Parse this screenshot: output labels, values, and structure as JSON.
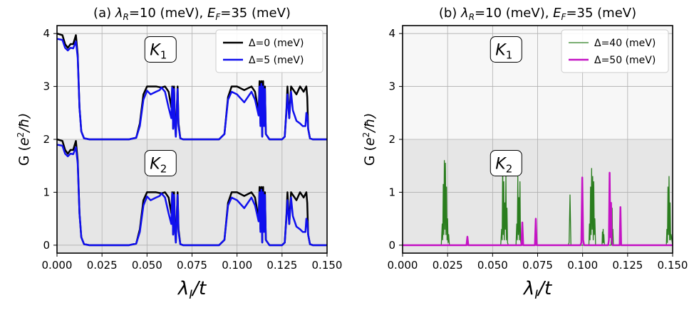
{
  "chart_data": [
    {
      "type": "line",
      "title": "(a) λR=10 (meV), EF=35 (meV)",
      "title_parts": {
        "prefix": "(a) ",
        "lam": "λ",
        "lam_sub": "R",
        "mid": "=10 (meV), ",
        "e": "E",
        "e_sub": "F",
        "end": "=35 (meV)"
      },
      "xlabel": {
        "main": "λ",
        "sub": "I",
        "rest": "/t"
      },
      "ylabel": {
        "pre": "G (",
        "e": "e",
        "sup": "2",
        "rest": "/ħ)"
      },
      "xlim": [
        0.0,
        0.15
      ],
      "ylim": [
        -0.15,
        4.15
      ],
      "xticks": [
        "0.000",
        "0.025",
        "0.050",
        "0.075",
        "0.100",
        "0.125",
        "0.150"
      ],
      "yticks": [
        "0",
        "1",
        "2",
        "3",
        "4"
      ],
      "grid": true,
      "legend_position": "top-right",
      "bands": [
        {
          "y0": 2,
          "y1": 4.15,
          "color": "#f7f7f7"
        },
        {
          "y0": -0.15,
          "y1": 2,
          "color": "#e6e6e6"
        }
      ],
      "valley_labels": [
        {
          "text": "K",
          "sub": "1",
          "x": 0.0575,
          "y": 3.7
        },
        {
          "text": "K",
          "sub": "2",
          "x": 0.0575,
          "y": 1.55
        }
      ],
      "series": [
        {
          "name": "Δ=0 (meV)",
          "color": "#000000",
          "width": 2.5,
          "x": [
            0,
            0.003,
            0.0045,
            0.006,
            0.0075,
            0.009,
            0.0105,
            0.0115,
            0.0125,
            0.0135,
            0.015,
            0.018,
            0.022,
            0.03,
            0.04,
            0.044,
            0.046,
            0.048,
            0.05,
            0.055,
            0.058,
            0.06,
            0.062,
            0.0635,
            0.064,
            0.0645,
            0.065,
            0.0655,
            0.066,
            0.067,
            0.0675,
            0.0685,
            0.07,
            0.08,
            0.09,
            0.093,
            0.095,
            0.097,
            0.1,
            0.104,
            0.108,
            0.11,
            0.112,
            0.1125,
            0.113,
            0.1135,
            0.114,
            0.1145,
            0.115,
            0.1155,
            0.116,
            0.118,
            0.12,
            0.125,
            0.1265,
            0.1275,
            0.128,
            0.129,
            0.13,
            0.131,
            0.133,
            0.135,
            0.137,
            0.1385,
            0.139,
            0.1395,
            0.1405,
            0.142,
            0.15
          ],
          "y": [
            4.0,
            3.97,
            3.8,
            3.73,
            3.8,
            3.8,
            3.97,
            3.6,
            2.6,
            2.15,
            2.02,
            2.0,
            2.0,
            2.0,
            2.0,
            2.03,
            2.3,
            2.85,
            3.0,
            3.0,
            2.98,
            3.0,
            2.9,
            2.6,
            3.0,
            2.2,
            3.0,
            2.4,
            2.05,
            3.0,
            2.3,
            2.02,
            2.0,
            2.0,
            2.0,
            2.1,
            2.8,
            3.0,
            3.0,
            2.93,
            3.0,
            2.9,
            2.5,
            3.1,
            2.3,
            3.1,
            2.05,
            3.1,
            2.3,
            3.0,
            2.1,
            2.0,
            2.0,
            2.0,
            2.05,
            2.6,
            3.0,
            2.4,
            3.0,
            2.95,
            2.85,
            3.0,
            2.9,
            3.0,
            2.8,
            2.2,
            2.02,
            2.0,
            2.0
          ]
        },
        {
          "name": "Δ=5 (meV)",
          "color": "#1010ee",
          "width": 2.5,
          "x": [
            0,
            0.003,
            0.0045,
            0.006,
            0.0075,
            0.009,
            0.0105,
            0.0115,
            0.0125,
            0.0135,
            0.015,
            0.018,
            0.022,
            0.03,
            0.04,
            0.044,
            0.046,
            0.048,
            0.05,
            0.052,
            0.055,
            0.057,
            0.058,
            0.06,
            0.062,
            0.0635,
            0.064,
            0.0645,
            0.065,
            0.0655,
            0.066,
            0.067,
            0.0675,
            0.0685,
            0.07,
            0.08,
            0.09,
            0.093,
            0.095,
            0.097,
            0.1,
            0.104,
            0.108,
            0.11,
            0.112,
            0.1125,
            0.113,
            0.1135,
            0.114,
            0.1145,
            0.115,
            0.1155,
            0.116,
            0.118,
            0.12,
            0.125,
            0.1265,
            0.1275,
            0.128,
            0.129,
            0.13,
            0.131,
            0.133,
            0.135,
            0.1365,
            0.138,
            0.1385,
            0.139,
            0.1395,
            0.1405,
            0.142,
            0.15
          ],
          "y": [
            3.9,
            3.88,
            3.73,
            3.68,
            3.73,
            3.72,
            3.85,
            3.55,
            2.6,
            2.15,
            2.02,
            2.0,
            2.0,
            2.0,
            2.0,
            2.03,
            2.25,
            2.75,
            2.92,
            2.85,
            2.9,
            2.93,
            2.98,
            2.9,
            2.6,
            2.4,
            2.98,
            2.2,
            2.95,
            2.3,
            2.05,
            2.95,
            2.25,
            2.02,
            2.0,
            2.0,
            2.0,
            2.1,
            2.75,
            2.9,
            2.85,
            2.7,
            2.9,
            2.75,
            2.45,
            3.0,
            2.25,
            3.05,
            2.05,
            3.0,
            2.25,
            2.95,
            2.1,
            2.0,
            2.0,
            2.0,
            2.05,
            2.55,
            2.85,
            2.4,
            2.9,
            2.55,
            2.35,
            2.3,
            2.25,
            2.25,
            2.5,
            2.45,
            2.2,
            2.02,
            2.0,
            2.0
          ]
        },
        {
          "name": "Δ=0 (meV)",
          "color": "#000000",
          "width": 2.5,
          "in_legend": false,
          "x": [
            0,
            0.003,
            0.0045,
            0.006,
            0.0075,
            0.009,
            0.0105,
            0.0115,
            0.0125,
            0.0135,
            0.015,
            0.018,
            0.022,
            0.03,
            0.04,
            0.044,
            0.046,
            0.048,
            0.05,
            0.055,
            0.058,
            0.06,
            0.062,
            0.0635,
            0.064,
            0.0645,
            0.065,
            0.0655,
            0.066,
            0.067,
            0.0675,
            0.0685,
            0.07,
            0.08,
            0.09,
            0.093,
            0.095,
            0.097,
            0.1,
            0.104,
            0.108,
            0.11,
            0.112,
            0.1125,
            0.113,
            0.1135,
            0.114,
            0.1145,
            0.115,
            0.1155,
            0.116,
            0.118,
            0.12,
            0.125,
            0.1265,
            0.1275,
            0.128,
            0.129,
            0.13,
            0.131,
            0.133,
            0.135,
            0.137,
            0.1385,
            0.139,
            0.1395,
            0.1405,
            0.142,
            0.15
          ],
          "y": [
            2.0,
            1.97,
            1.8,
            1.73,
            1.8,
            1.8,
            1.97,
            1.6,
            0.6,
            0.15,
            0.02,
            0.0,
            0.0,
            0.0,
            0.0,
            0.03,
            0.3,
            0.85,
            1.0,
            1.0,
            0.98,
            1.0,
            0.9,
            0.6,
            1.0,
            0.2,
            1.0,
            0.4,
            0.05,
            1.0,
            0.3,
            0.02,
            0.0,
            0.0,
            0.0,
            0.1,
            0.8,
            1.0,
            1.0,
            0.93,
            1.0,
            0.9,
            0.5,
            1.1,
            0.3,
            1.1,
            0.05,
            1.1,
            0.3,
            1.0,
            0.1,
            0.0,
            0.0,
            0.0,
            0.05,
            0.6,
            1.0,
            0.4,
            1.0,
            0.95,
            0.85,
            1.0,
            0.9,
            1.0,
            0.8,
            0.2,
            0.02,
            0.0,
            0.0
          ]
        },
        {
          "name": "Δ=5 (meV)",
          "color": "#1010ee",
          "width": 2.5,
          "in_legend": false,
          "x": [
            0,
            0.003,
            0.0045,
            0.006,
            0.0075,
            0.009,
            0.0105,
            0.0115,
            0.0125,
            0.0135,
            0.015,
            0.018,
            0.022,
            0.03,
            0.04,
            0.044,
            0.046,
            0.048,
            0.05,
            0.052,
            0.055,
            0.057,
            0.058,
            0.06,
            0.062,
            0.0635,
            0.064,
            0.0645,
            0.065,
            0.0655,
            0.066,
            0.067,
            0.0675,
            0.0685,
            0.07,
            0.08,
            0.09,
            0.093,
            0.095,
            0.097,
            0.1,
            0.104,
            0.108,
            0.11,
            0.112,
            0.1125,
            0.113,
            0.1135,
            0.114,
            0.1145,
            0.115,
            0.1155,
            0.116,
            0.118,
            0.12,
            0.125,
            0.1265,
            0.1275,
            0.128,
            0.129,
            0.13,
            0.131,
            0.133,
            0.135,
            0.1365,
            0.138,
            0.1385,
            0.139,
            0.1395,
            0.1405,
            0.142,
            0.15
          ],
          "y": [
            1.9,
            1.88,
            1.73,
            1.68,
            1.73,
            1.72,
            1.85,
            1.55,
            0.6,
            0.15,
            0.02,
            0.0,
            0.0,
            0.0,
            0.0,
            0.03,
            0.25,
            0.75,
            0.92,
            0.85,
            0.9,
            0.93,
            0.98,
            0.9,
            0.6,
            0.4,
            0.98,
            0.2,
            0.95,
            0.3,
            0.05,
            0.95,
            0.25,
            0.02,
            0.0,
            0.0,
            0.0,
            0.1,
            0.75,
            0.9,
            0.85,
            0.7,
            0.9,
            0.75,
            0.45,
            1.0,
            0.25,
            1.05,
            0.05,
            1.0,
            0.25,
            0.95,
            0.1,
            0.0,
            0.0,
            0.0,
            0.05,
            0.55,
            0.85,
            0.4,
            0.9,
            0.55,
            0.35,
            0.3,
            0.25,
            0.25,
            0.5,
            0.45,
            0.2,
            0.02,
            0.0,
            0.0
          ]
        }
      ]
    },
    {
      "type": "line",
      "title": "(b) λR=10 (meV), EF=35 (meV)",
      "title_parts": {
        "prefix": "(b) ",
        "lam": "λ",
        "lam_sub": "R",
        "mid": "=10 (meV), ",
        "e": "E",
        "e_sub": "F",
        "end": "=35 (meV)"
      },
      "xlabel": {
        "main": "λ",
        "sub": "I",
        "rest": "/t"
      },
      "ylabel": {
        "pre": "G (",
        "e": "e",
        "sup": "2",
        "rest": "/ħ)"
      },
      "xlim": [
        0.0,
        0.15
      ],
      "ylim": [
        -0.15,
        4.15
      ],
      "xticks": [
        "0.000",
        "0.025",
        "0.050",
        "0.075",
        "0.100",
        "0.125",
        "0.150"
      ],
      "yticks": [
        "0",
        "1",
        "2",
        "3",
        "4"
      ],
      "grid": true,
      "legend_position": "top-right",
      "bands": [
        {
          "y0": 2,
          "y1": 4.15,
          "color": "#f7f7f7"
        },
        {
          "y0": -0.15,
          "y1": 2,
          "color": "#e6e6e6"
        }
      ],
      "valley_labels": [
        {
          "text": "K",
          "sub": "1",
          "x": 0.0575,
          "y": 3.7
        },
        {
          "text": "K",
          "sub": "2",
          "x": 0.0575,
          "y": 1.55
        }
      ],
      "series": [
        {
          "name": "Δ=40 (meV)",
          "color": "#2a7d1e",
          "width": 1.3,
          "x": [
            0,
            0.0215,
            0.022,
            0.0223,
            0.0226,
            0.0229,
            0.0232,
            0.0235,
            0.0238,
            0.0241,
            0.0244,
            0.0247,
            0.025,
            0.0253,
            0.0256,
            0.026,
            0.0545,
            0.055,
            0.0553,
            0.0556,
            0.0559,
            0.0562,
            0.0565,
            0.0568,
            0.0571,
            0.0574,
            0.0577,
            0.058,
            0.0583,
            0.0587,
            0.063,
            0.0634,
            0.0637,
            0.064,
            0.0643,
            0.0646,
            0.0649,
            0.0652,
            0.0655,
            0.0659,
            0.092,
            0.0925,
            0.093,
            0.0935,
            0.1035,
            0.1038,
            0.1041,
            0.1044,
            0.1047,
            0.105,
            0.1053,
            0.1056,
            0.1059,
            0.1062,
            0.1065,
            0.1068,
            0.1072,
            0.1108,
            0.111,
            0.1112,
            0.1114,
            0.1116,
            0.1118,
            0.1121,
            0.1158,
            0.116,
            0.1162,
            0.1164,
            0.1166,
            0.1168,
            0.1171,
            0.1465,
            0.1468,
            0.1471,
            0.1474,
            0.1477,
            0.148,
            0.1483,
            0.1486,
            0.1489,
            0.1492,
            0.15
          ],
          "y": [
            0,
            0,
            0.4,
            0.1,
            1.15,
            0.2,
            1.6,
            0.3,
            1.55,
            0.2,
            1.1,
            0.1,
            0.5,
            0.05,
            0.2,
            0,
            0,
            0.3,
            0.1,
            1.55,
            0.2,
            1.2,
            0.1,
            0.8,
            0.3,
            1.3,
            0.1,
            0.7,
            0.05,
            0,
            0,
            0.4,
            0.1,
            1.3,
            0.2,
            0.9,
            0.1,
            1.2,
            0.1,
            0,
            0,
            0.05,
            0.95,
            0,
            0,
            0.4,
            0.1,
            1.1,
            0.2,
            1.45,
            0.3,
            1.3,
            0.1,
            1.2,
            0.2,
            0.5,
            0,
            0,
            0.25,
            0.05,
            0.3,
            0.05,
            0.2,
            0,
            0,
            0.3,
            0.05,
            0.7,
            0.1,
            0.3,
            0,
            0,
            0.3,
            0.05,
            1.1,
            0.2,
            1.3,
            0.1,
            0.8,
            0.1,
            0.2,
            0
          ]
        },
        {
          "name": "Δ=50 (meV)",
          "color": "#c414c4",
          "width": 2.5,
          "x": [
            0,
            0.0355,
            0.036,
            0.0365,
            0.066,
            0.0665,
            0.067,
            0.0735,
            0.074,
            0.0745,
            0.0988,
            0.0993,
            0.0998,
            0.1003,
            0.1008,
            0.1142,
            0.1146,
            0.115,
            0.1154,
            0.1158,
            0.1162,
            0.1166,
            0.1206,
            0.121,
            0.1214,
            0.15
          ],
          "y": [
            0,
            0,
            0.16,
            0,
            0,
            0.43,
            0,
            0,
            0.5,
            0,
            0,
            0.05,
            1.28,
            0.1,
            0,
            0,
            0.1,
            1.37,
            0.15,
            0.8,
            0.1,
            0,
            0,
            0.72,
            0,
            0
          ]
        }
      ]
    }
  ]
}
